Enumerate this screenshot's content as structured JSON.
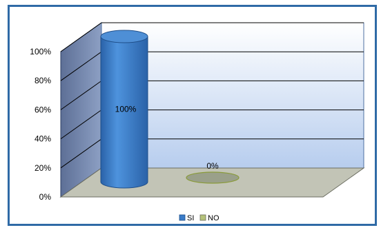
{
  "chart_data": {
    "type": "bar",
    "style": "3d-cylinder",
    "categories": [
      "SI",
      "NO"
    ],
    "values": [
      100,
      0
    ],
    "data_labels": [
      "100%",
      "0%"
    ],
    "y_ticks": [
      "0%",
      "20%",
      "40%",
      "60%",
      "80%",
      "100%"
    ],
    "ylim": [
      0,
      100
    ],
    "grid": true,
    "legend_position": "bottom",
    "legend": [
      "SI",
      "NO"
    ],
    "colors": {
      "SI": "#3a7cc8",
      "NO": "#9aa08a",
      "back_wall": "#c9dcf5",
      "side_wall": "#7c8fb3",
      "floor": "#c2c4b6",
      "frame": "#2f6aa6"
    }
  }
}
